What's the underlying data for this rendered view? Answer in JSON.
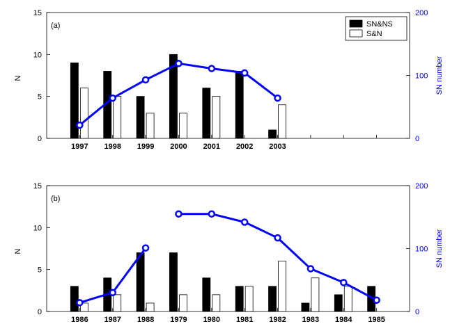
{
  "chart_data": [
    {
      "panel_label": "(a)",
      "type": "bar",
      "categories": [
        "1997",
        "1998",
        "1999",
        "2000",
        "2001",
        "2002",
        "2003",
        "",
        "",
        ""
      ],
      "ylabel": "N",
      "ylim": [
        0,
        15
      ],
      "yticks": [
        0,
        5,
        10,
        15
      ],
      "y2label": "SN number",
      "y2lim": [
        0,
        200
      ],
      "y2ticks": [
        0,
        100,
        200
      ],
      "legend": {
        "placement": "top-right",
        "entries": [
          "SN&NS",
          "S&N"
        ]
      },
      "series": [
        {
          "name": "SN&NS",
          "kind": "bar",
          "fill": "#000000",
          "values": [
            9,
            8,
            5,
            10,
            6,
            8,
            1,
            null,
            null,
            null
          ]
        },
        {
          "name": "S&N",
          "kind": "bar",
          "fill": "#ffffff",
          "values": [
            6,
            5,
            3,
            3,
            5,
            0,
            4,
            null,
            null,
            null
          ]
        },
        {
          "kind": "line",
          "axis": "right",
          "color": "#0000ff",
          "values": [
            21,
            64,
            93,
            119,
            111,
            104,
            64,
            null,
            null,
            null
          ]
        }
      ]
    },
    {
      "panel_label": "(b)",
      "type": "bar",
      "categories": [
        "1986",
        "1987",
        "1988",
        "1979",
        "1980",
        "1981",
        "1982",
        "1983",
        "1984",
        "1985"
      ],
      "ylabel": "N",
      "ylim": [
        0,
        15
      ],
      "yticks": [
        0,
        5,
        10,
        15
      ],
      "y2label": "SN number",
      "y2lim": [
        0,
        200
      ],
      "y2ticks": [
        0,
        100,
        200
      ],
      "series": [
        {
          "name": "SN&NS",
          "kind": "bar",
          "fill": "#000000",
          "values": [
            3,
            4,
            7,
            7,
            4,
            3,
            3,
            1,
            2,
            3
          ]
        },
        {
          "name": "S&N",
          "kind": "bar",
          "fill": "#ffffff",
          "values": [
            1,
            2,
            1,
            2,
            2,
            3,
            6,
            4,
            3,
            0
          ]
        },
        {
          "kind": "line",
          "axis": "right",
          "color": "#0000ff",
          "values": [
            14,
            30,
            101,
            155,
            155,
            142,
            117,
            68,
            46,
            18
          ],
          "break_before_index": 3
        }
      ]
    }
  ]
}
